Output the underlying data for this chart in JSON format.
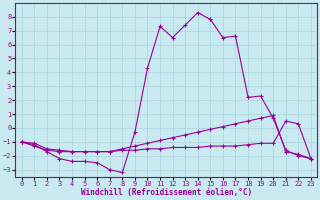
{
  "xlabel": "Windchill (Refroidissement éolien,°C)",
  "background_color": "#c8eaf0",
  "grid_color": "#aad4dc",
  "line_color": "#990099",
  "x_ticks": [
    0,
    1,
    2,
    3,
    4,
    5,
    6,
    7,
    8,
    9,
    10,
    11,
    12,
    13,
    14,
    15,
    16,
    17,
    18,
    19,
    20,
    21,
    22,
    23
  ],
  "ylim": [
    -3.5,
    9.0
  ],
  "xlim": [
    -0.5,
    23.5
  ],
  "yticks": [
    -3,
    -2,
    -1,
    0,
    1,
    2,
    3,
    4,
    5,
    6,
    7,
    8
  ],
  "curve1_x": [
    0,
    1,
    2,
    3,
    4,
    5,
    6,
    7,
    8,
    9,
    10,
    11,
    12,
    13,
    14,
    15,
    16,
    17,
    18,
    19,
    20,
    21,
    22,
    23
  ],
  "curve1_y": [
    -1.0,
    -1.2,
    -1.7,
    -2.2,
    -2.4,
    -2.4,
    -2.5,
    -3.0,
    -3.2,
    -0.3,
    4.3,
    7.3,
    6.5,
    7.4,
    8.3,
    7.8,
    6.5,
    6.6,
    2.2,
    2.3,
    0.7,
    -1.6,
    -2.0,
    -2.2
  ],
  "curve2_x": [
    0,
    1,
    2,
    3,
    4,
    5,
    6,
    7,
    8,
    9,
    10,
    11,
    12,
    13,
    14,
    15,
    16,
    17,
    18,
    19,
    20,
    21,
    22,
    23
  ],
  "curve2_y": [
    -1.0,
    -1.3,
    -1.6,
    -1.7,
    -1.7,
    -1.7,
    -1.7,
    -1.7,
    -1.6,
    -1.6,
    -1.5,
    -1.5,
    -1.4,
    -1.4,
    -1.4,
    -1.3,
    -1.3,
    -1.3,
    -1.2,
    -1.1,
    -1.1,
    0.5,
    0.3,
    -2.2
  ],
  "curve3_x": [
    0,
    1,
    2,
    3,
    4,
    5,
    6,
    7,
    8,
    9,
    10,
    11,
    12,
    13,
    14,
    15,
    16,
    17,
    18,
    19,
    20,
    21,
    22,
    23
  ],
  "curve3_y": [
    -1.0,
    -1.1,
    -1.5,
    -1.6,
    -1.7,
    -1.7,
    -1.7,
    -1.7,
    -1.5,
    -1.3,
    -1.1,
    -0.9,
    -0.7,
    -0.5,
    -0.3,
    -0.1,
    0.1,
    0.3,
    0.5,
    0.7,
    0.9,
    -1.7,
    -1.9,
    -2.2
  ]
}
